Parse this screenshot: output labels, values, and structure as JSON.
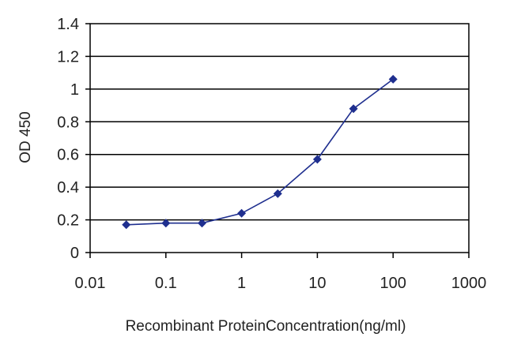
{
  "chart_data": {
    "type": "scatter",
    "xlabel": "Recombinant ProteinConcentration(ng/ml)",
    "ylabel": "OD 450",
    "x_scale": "log",
    "xlim": [
      0.01,
      1000
    ],
    "ylim": [
      0,
      1.4
    ],
    "x_ticks": [
      0.01,
      0.1,
      1,
      10,
      100,
      1000
    ],
    "x_tick_labels": [
      "0.01",
      "0.1",
      "1",
      "10",
      "100",
      "1000"
    ],
    "y_ticks": [
      0,
      0.2,
      0.4,
      0.6,
      0.8,
      1,
      1.2,
      1.4
    ],
    "y_tick_labels": [
      "0",
      "0.2",
      "0.4",
      "0.6",
      "0.8",
      "1",
      "1.2",
      "1.4"
    ],
    "grid": "horizontal",
    "legend": "none",
    "series": [
      {
        "x": [
          0.03,
          0.1,
          0.3,
          1,
          3,
          10,
          30,
          100
        ],
        "y": [
          0.17,
          0.18,
          0.18,
          0.24,
          0.36,
          0.57,
          0.88,
          1.06
        ]
      }
    ],
    "colors": {
      "series": "#1f2f8f",
      "frame": "#000000"
    }
  }
}
